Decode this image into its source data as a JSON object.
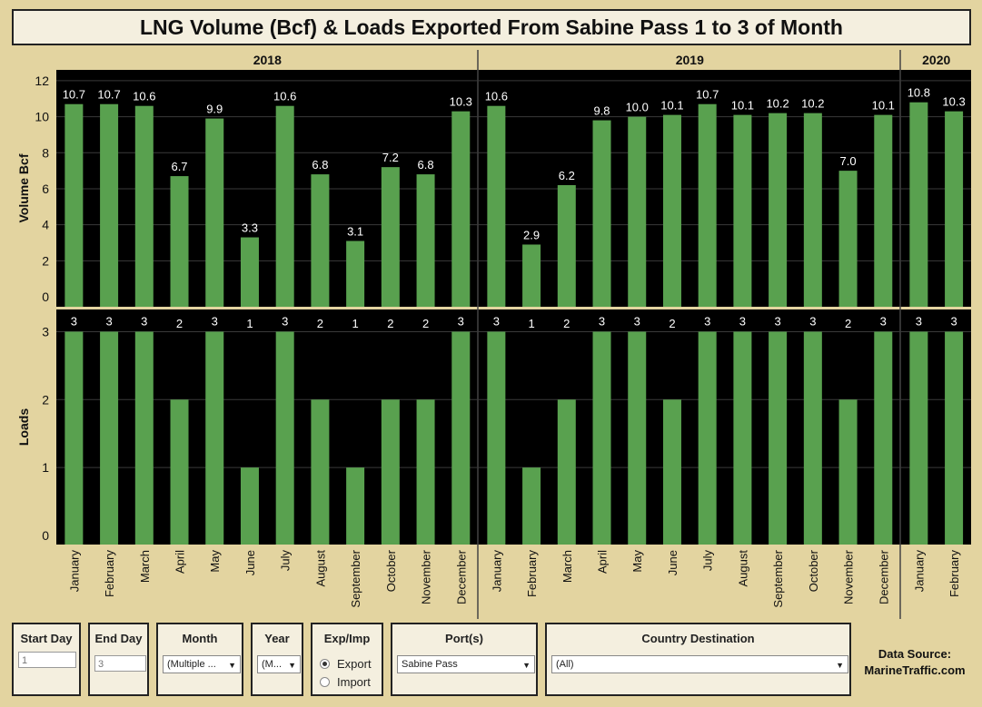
{
  "page": {
    "title": "LNG Volume (Bcf) & Loads Exported From Sabine Pass 1 to 3 of Month"
  },
  "colors": {
    "background": "#e3d4a0",
    "plot": "#000000",
    "bar": "#59a14f",
    "panel": "#f4efdf"
  },
  "chart_data": {
    "type": "bar",
    "title": "LNG Volume (Bcf) & Loads Exported From Sabine Pass 1 to 3 of Month",
    "year_groups": [
      {
        "label": "2018",
        "months": [
          "January",
          "February",
          "March",
          "April",
          "May",
          "June",
          "July",
          "August",
          "September",
          "October",
          "November",
          "December"
        ]
      },
      {
        "label": "2019",
        "months": [
          "January",
          "February",
          "March",
          "April",
          "May",
          "June",
          "July",
          "August",
          "September",
          "October",
          "November",
          "December"
        ]
      },
      {
        "label": "2020",
        "months": [
          "January",
          "February"
        ]
      }
    ],
    "series": [
      {
        "name": "Volume Bcf",
        "ylabel": "Volume Bcf",
        "ylim": [
          0,
          12.5
        ],
        "ticks": [
          0,
          2,
          4,
          6,
          8,
          10,
          12
        ],
        "values": [
          10.7,
          10.7,
          10.6,
          6.7,
          9.9,
          3.3,
          10.6,
          6.8,
          3.1,
          7.2,
          6.8,
          10.3,
          10.6,
          2.9,
          6.2,
          9.8,
          10.0,
          10.1,
          10.7,
          10.1,
          10.2,
          10.2,
          7.0,
          10.1,
          10.8,
          10.3
        ],
        "labels": [
          "10.7",
          "10.7",
          "10.6",
          "6.7",
          "9.9",
          "3.3",
          "10.6",
          "6.8",
          "3.1",
          "7.2",
          "6.8",
          "10.3",
          "10.6",
          "2.9",
          "6.2",
          "9.8",
          "10.0",
          "10.1",
          "10.7",
          "10.1",
          "10.2",
          "10.2",
          "7.0",
          "10.1",
          "10.8",
          "10.3"
        ]
      },
      {
        "name": "Loads",
        "ylabel": "Loads",
        "ylim": [
          0,
          3.3
        ],
        "ticks": [
          0,
          1,
          2,
          3
        ],
        "values": [
          3,
          3,
          3,
          2,
          3,
          1,
          3,
          2,
          1,
          2,
          2,
          3,
          3,
          1,
          2,
          3,
          3,
          2,
          3,
          3,
          3,
          3,
          2,
          3,
          3,
          3
        ],
        "labels": [
          "3",
          "3",
          "3",
          "2",
          "3",
          "1",
          "3",
          "2",
          "1",
          "2",
          "2",
          "3",
          "3",
          "1",
          "2",
          "3",
          "3",
          "2",
          "3",
          "3",
          "3",
          "3",
          "2",
          "3",
          "3",
          "3"
        ]
      }
    ]
  },
  "filters": {
    "start_day": {
      "label": "Start Day",
      "value": "1"
    },
    "end_day": {
      "label": "End Day",
      "value": "3"
    },
    "month": {
      "label": "Month",
      "value": "(Multiple ..."
    },
    "year": {
      "label": "Year",
      "value": "(M..."
    },
    "exp_imp": {
      "label": "Exp/Imp",
      "options": [
        "Export",
        "Import"
      ]
    },
    "ports": {
      "label": "Port(s)",
      "value": "Sabine Pass"
    },
    "country": {
      "label": "Country Destination",
      "value": "(All)"
    }
  },
  "source": {
    "line1": "Data Source:",
    "line2": "MarineTraffic.com"
  }
}
